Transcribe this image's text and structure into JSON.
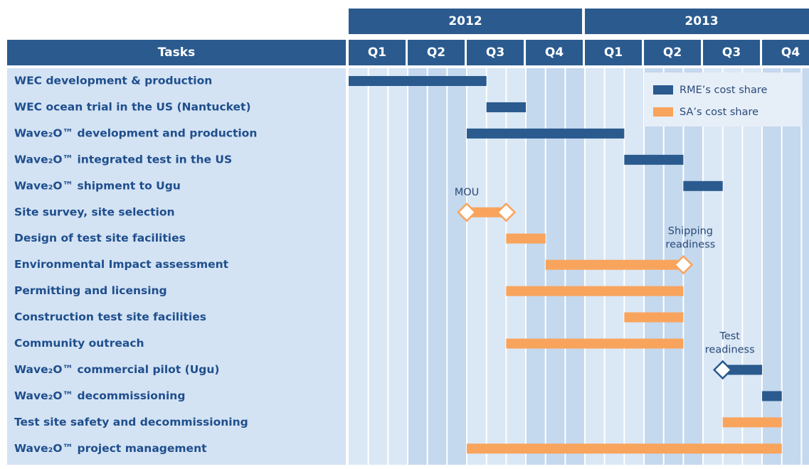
{
  "chart_data": {
    "type": "gantt",
    "task_header": "Tasks",
    "years": [
      "2012",
      "2013"
    ],
    "quarters": [
      "Q1",
      "Q2",
      "Q3",
      "Q4",
      "Q1",
      "Q2",
      "Q3",
      "Q4"
    ],
    "xlim": [
      0,
      24
    ],
    "series": [
      {
        "name": "RME’s cost share",
        "color": "#2a5a8e"
      },
      {
        "name": "SA’s cost share",
        "color": "#f9a45c"
      }
    ],
    "tasks": [
      {
        "name": "WEC development & production",
        "series": 0,
        "start": 0,
        "end": 7
      },
      {
        "name": "WEC ocean trial in the US (Nantucket)",
        "series": 0,
        "start": 7,
        "end": 9
      },
      {
        "name": "Wave₂O™ development and production",
        "series": 0,
        "start": 6,
        "end": 14
      },
      {
        "name": "Wave₂O™ integrated test in the US",
        "series": 0,
        "start": 14,
        "end": 17
      },
      {
        "name": "Wave₂O™ shipment to Ugu",
        "series": 0,
        "start": 17,
        "end": 19
      },
      {
        "name": "Site survey, site selection",
        "series": 1,
        "start": 6,
        "end": 8
      },
      {
        "name": "Design of test site facilities",
        "series": 1,
        "start": 8,
        "end": 10
      },
      {
        "name": "Environmental Impact assessment",
        "series": 1,
        "start": 10,
        "end": 17
      },
      {
        "name": "Permitting and licensing",
        "series": 1,
        "start": 8,
        "end": 17
      },
      {
        "name": "Construction test site facilities",
        "series": 1,
        "start": 14,
        "end": 17
      },
      {
        "name": "Community outreach",
        "series": 1,
        "start": 8,
        "end": 17
      },
      {
        "name": "Wave₂O™ commercial pilot (Ugu)",
        "series": 0,
        "start": 19,
        "end": 21
      },
      {
        "name": "Wave₂O™ decommissioning",
        "series": 0,
        "start": 21,
        "end": 22
      },
      {
        "name": "Test site safety and decommissioning",
        "series": 1,
        "start": 19,
        "end": 22
      },
      {
        "name": "Wave₂O™ project management",
        "series": 1,
        "start": 6,
        "end": 22
      }
    ],
    "milestones": [
      {
        "task": 5,
        "series": 1,
        "at": 6,
        "label": [
          "MOU"
        ]
      },
      {
        "task": 5,
        "series": 1,
        "at": 8
      },
      {
        "task": 7,
        "series": 1,
        "at": 17,
        "label": [
          "Shipping",
          "readiness"
        ]
      },
      {
        "task": 11,
        "series": 0,
        "at": 19,
        "label": [
          "Test",
          "readiness"
        ]
      }
    ]
  }
}
